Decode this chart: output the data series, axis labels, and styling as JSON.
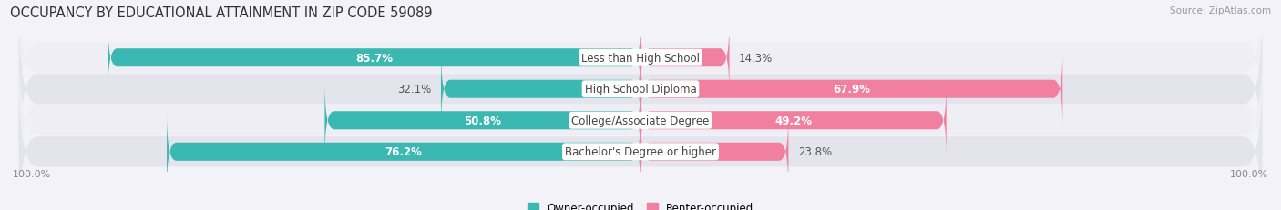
{
  "title": "OCCUPANCY BY EDUCATIONAL ATTAINMENT IN ZIP CODE 59089",
  "source": "Source: ZipAtlas.com",
  "categories": [
    "Less than High School",
    "High School Diploma",
    "College/Associate Degree",
    "Bachelor's Degree or higher"
  ],
  "owner_pct": [
    85.7,
    32.1,
    50.8,
    76.2
  ],
  "renter_pct": [
    14.3,
    67.9,
    49.2,
    23.8
  ],
  "owner_color": "#3bb8b2",
  "renter_color": "#f07fa0",
  "row_bg_color_odd": "#eeeef4",
  "row_bg_color_even": "#e4e4ec",
  "label_box_color": "#ffffff",
  "title_fontsize": 10.5,
  "pct_fontsize": 8.5,
  "tick_fontsize": 8,
  "source_fontsize": 7.5,
  "legend_fontsize": 8.5,
  "fig_bg_color": "#f2f2f8"
}
